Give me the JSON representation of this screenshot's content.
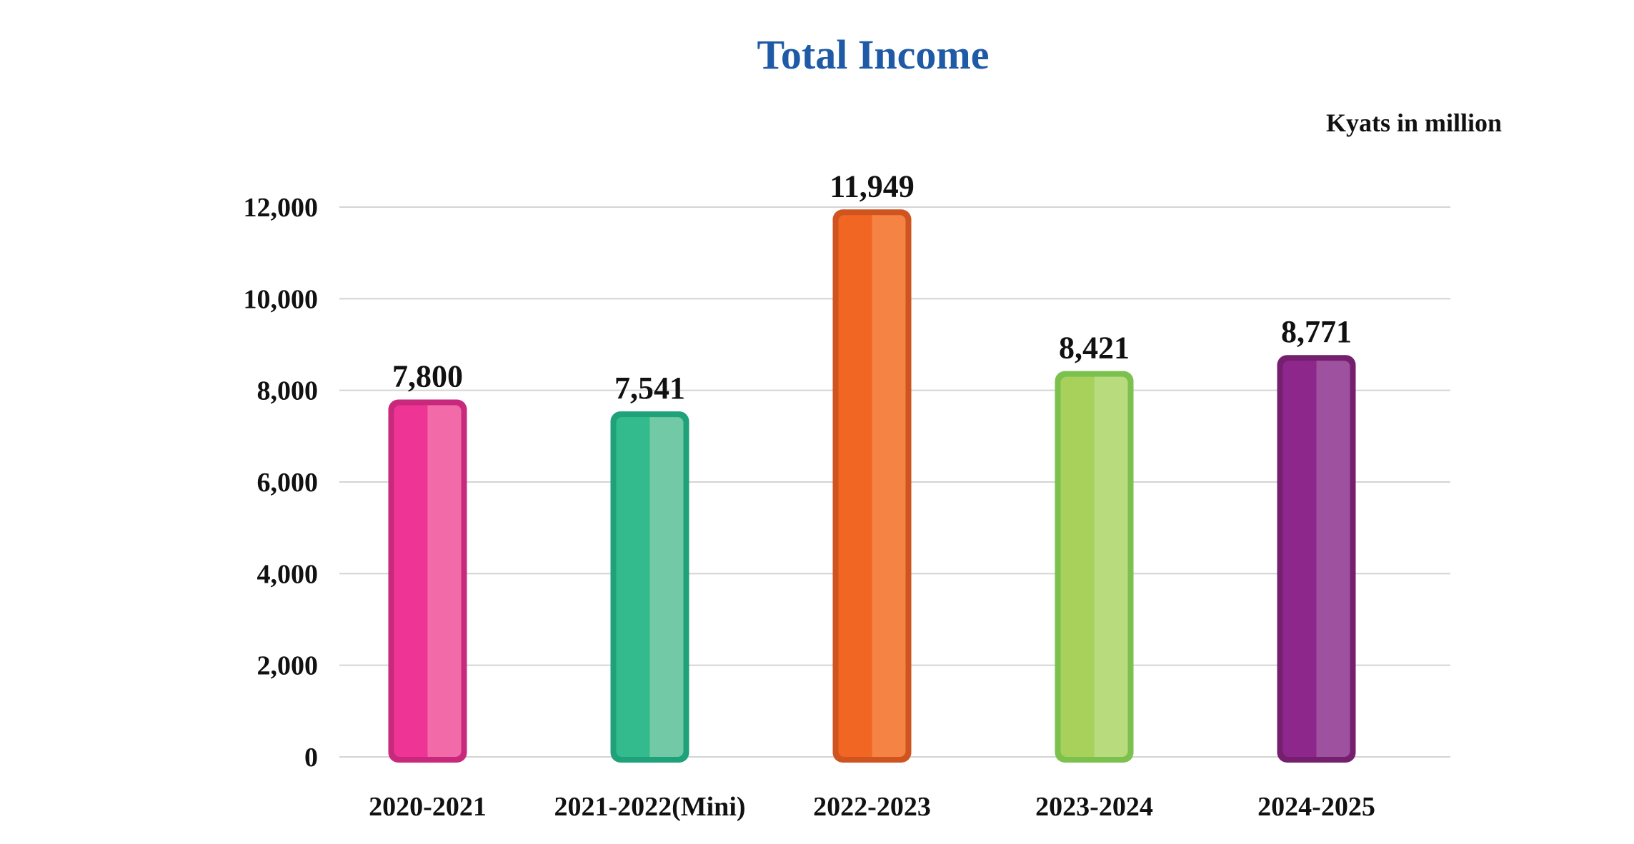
{
  "chart_data": {
    "type": "bar",
    "title": "Total Income",
    "unit_label": "Kyats in million",
    "categories": [
      "2020-2021",
      "2021-2022(Mini)",
      "2022-2023",
      "2023-2024",
      "2024-2025"
    ],
    "values": [
      7800,
      7541,
      11949,
      8421,
      8771
    ],
    "value_labels": [
      "7,800",
      "7,541",
      "11,949",
      "8,421",
      "8,771"
    ],
    "y_ticks": [
      0,
      2000,
      4000,
      6000,
      8000,
      10000,
      12000
    ],
    "y_tick_labels": [
      "0",
      "2,000",
      "4,000",
      "6,000",
      "8,000",
      "10,000",
      "12,000"
    ],
    "ylim": [
      0,
      12000
    ],
    "xlabel": "",
    "ylabel": "",
    "grid": true,
    "legend": "none",
    "colors": {
      "title": "#1f5aa6",
      "bars": [
        {
          "base": "#ee3595",
          "light": "#f26aa8",
          "edge": "#c9297c"
        },
        {
          "base": "#34bb8d",
          "light": "#72c9a5",
          "edge": "#1fa17a"
        },
        {
          "base": "#f26624",
          "light": "#f48344",
          "edge": "#cf5420"
        },
        {
          "base": "#a7d15a",
          "light": "#b8db7e",
          "edge": "#7cc14e"
        },
        {
          "base": "#8e278c",
          "light": "#9e519e",
          "edge": "#74206f"
        }
      ]
    }
  }
}
